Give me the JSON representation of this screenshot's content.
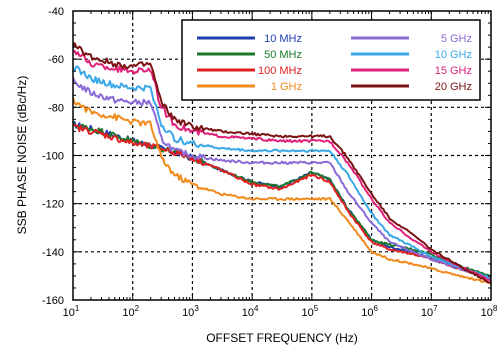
{
  "chart_data": {
    "type": "line",
    "xlabel": "OFFSET FREQUENCY  (Hz)",
    "ylabel": "SSB PHASE NOISE (dBc/Hz)",
    "x_scale": "log",
    "xlim": [
      10,
      100000000
    ],
    "ylim": [
      -160,
      -40
    ],
    "grid": true,
    "legend_position": "top-right",
    "x_ticks": [
      {
        "base": "10",
        "exp": "1"
      },
      {
        "base": "10",
        "exp": "2"
      },
      {
        "base": "10",
        "exp": "3"
      },
      {
        "base": "10",
        "exp": "4"
      },
      {
        "base": "10",
        "exp": "5"
      },
      {
        "base": "10",
        "exp": "6"
      },
      {
        "base": "10",
        "exp": "7"
      },
      {
        "base": "10",
        "exp": "8"
      }
    ],
    "y_ticks": [
      "-40",
      "-60",
      "-80",
      "-100",
      "-120",
      "-140",
      "-160"
    ],
    "series": [
      {
        "name": "10 MHz",
        "color": "#1f3fb0",
        "x": [
          10,
          30,
          100,
          300,
          1000,
          3000,
          10000,
          30000,
          100000,
          200000,
          400000,
          1000000,
          2000000,
          5000000,
          10000000,
          30000000,
          100000000
        ],
        "y": [
          -87,
          -90,
          -94,
          -97,
          -101,
          -106,
          -111,
          -113,
          -107,
          -110,
          -122,
          -135,
          -138,
          -140,
          -143,
          -147,
          -151
        ]
      },
      {
        "name": "50 MHz",
        "color": "#1a7a2a",
        "x": [
          10,
          30,
          100,
          300,
          1000,
          3000,
          10000,
          30000,
          100000,
          200000,
          400000,
          1000000,
          2000000,
          5000000,
          10000000,
          30000000,
          100000000
        ],
        "y": [
          -87,
          -90,
          -94,
          -97,
          -101,
          -106,
          -111,
          -113,
          -107,
          -110,
          -122,
          -135,
          -137,
          -139,
          -141,
          -146,
          -150
        ]
      },
      {
        "name": "100 MHz",
        "color": "#e02020",
        "x": [
          10,
          30,
          100,
          300,
          1000,
          3000,
          10000,
          30000,
          100000,
          200000,
          400000,
          1000000,
          2000000,
          5000000,
          10000000,
          30000000,
          100000000
        ],
        "y": [
          -88,
          -91,
          -95,
          -97,
          -101,
          -106,
          -112,
          -114,
          -108,
          -111,
          -123,
          -136,
          -139,
          -141,
          -143,
          -147,
          -151
        ]
      },
      {
        "name": "1 GHz",
        "color": "#f08a1c",
        "x": [
          10,
          20,
          50,
          100,
          200,
          300,
          500,
          1000,
          3000,
          10000,
          30000,
          100000,
          200000,
          400000,
          1000000,
          2000000,
          5000000,
          10000000,
          30000000,
          100000000
        ],
        "y": [
          -77,
          -82,
          -84,
          -86,
          -87,
          -101,
          -108,
          -112,
          -116,
          -118,
          -118,
          -118,
          -118,
          -127,
          -140,
          -143,
          -145,
          -147,
          -150,
          -153
        ]
      },
      {
        "name": "5 GHz",
        "color": "#8a6ad6",
        "x": [
          10,
          20,
          50,
          100,
          200,
          300,
          500,
          1000,
          3000,
          10000,
          30000,
          100000,
          200000,
          400000,
          1000000,
          2000000,
          5000000,
          10000000,
          30000000,
          100000000
        ],
        "y": [
          -69,
          -74,
          -77,
          -78,
          -78,
          -93,
          -98,
          -100,
          -102,
          -103,
          -103,
          -103,
          -103,
          -115,
          -128,
          -136,
          -140,
          -143,
          -147,
          -151
        ]
      },
      {
        "name": "10 GHz",
        "color": "#3aa8e8",
        "x": [
          10,
          20,
          50,
          100,
          200,
          300,
          500,
          1000,
          3000,
          10000,
          30000,
          100000,
          200000,
          400000,
          1000000,
          2000000,
          5000000,
          10000000,
          30000000,
          100000000
        ],
        "y": [
          -63,
          -68,
          -71,
          -72,
          -72,
          -87,
          -93,
          -95,
          -97,
          -98,
          -98,
          -98,
          -98,
          -108,
          -124,
          -133,
          -138,
          -142,
          -146,
          -151
        ]
      },
      {
        "name": "15 GHz",
        "color": "#e0207a",
        "x": [
          10,
          20,
          50,
          100,
          200,
          300,
          500,
          1000,
          3000,
          10000,
          30000,
          100000,
          200000,
          400000,
          1000000,
          2000000,
          5000000,
          10000000,
          30000000,
          100000000
        ],
        "y": [
          -56,
          -62,
          -64,
          -65,
          -64,
          -80,
          -87,
          -90,
          -92,
          -93,
          -94,
          -94,
          -94,
          -103,
          -118,
          -128,
          -135,
          -140,
          -146,
          -152
        ]
      },
      {
        "name": "20 GHz",
        "color": "#7a1414",
        "x": [
          10,
          20,
          50,
          100,
          200,
          300,
          500,
          1000,
          3000,
          10000,
          30000,
          100000,
          200000,
          400000,
          1000000,
          2000000,
          5000000,
          10000000,
          30000000,
          100000000
        ],
        "y": [
          -54,
          -59,
          -62,
          -63,
          -62,
          -78,
          -85,
          -88,
          -90,
          -91,
          -92,
          -92,
          -92,
          -101,
          -116,
          -126,
          -133,
          -139,
          -146,
          -153
        ]
      }
    ]
  }
}
